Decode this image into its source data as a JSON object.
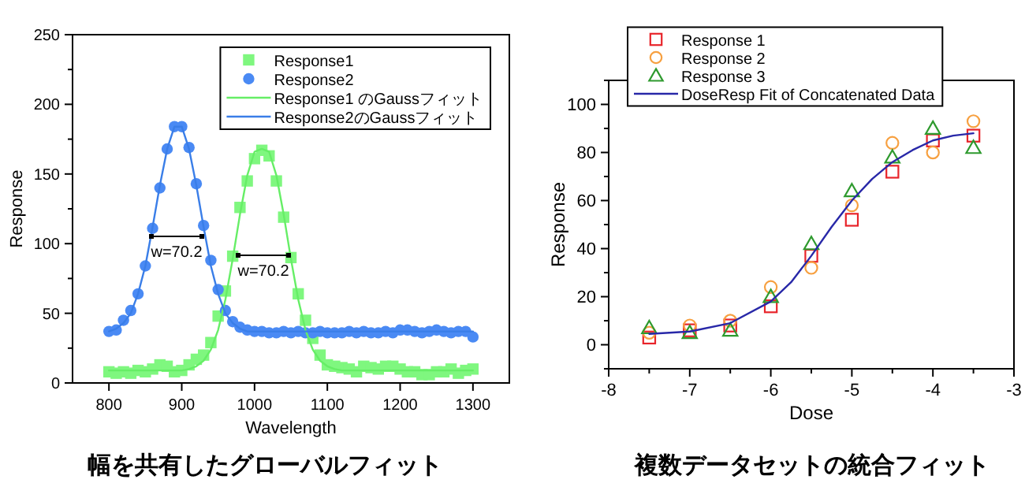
{
  "chart_data": [
    {
      "type": "scatter",
      "title": "幅を共有したグローバルフィット",
      "xlabel": "Wavelength",
      "ylabel": "Response",
      "xlim": [
        750,
        1350
      ],
      "ylim": [
        0,
        250
      ],
      "xticks": [
        800,
        900,
        1000,
        1100,
        1200,
        1300
      ],
      "yticks": [
        0,
        {
          "value": 25,
          "label": null
        },
        50,
        {
          "value": 75,
          "label": null
        },
        100,
        {
          "value": 125,
          "label": null
        },
        150,
        {
          "value": 175,
          "label": null
        },
        200,
        {
          "value": 225,
          "label": null
        },
        250
      ],
      "legend": "top right",
      "annotations": [
        "w=70.2",
        "w=70.2"
      ],
      "x": [
        800,
        810,
        820,
        830,
        840,
        850,
        860,
        870,
        880,
        890,
        900,
        910,
        920,
        930,
        940,
        950,
        960,
        970,
        980,
        990,
        1000,
        1010,
        1020,
        1030,
        1040,
        1050,
        1060,
        1070,
        1080,
        1090,
        1100,
        1110,
        1120,
        1130,
        1140,
        1150,
        1160,
        1170,
        1180,
        1190,
        1200,
        1210,
        1220,
        1230,
        1240,
        1250,
        1260,
        1270,
        1280,
        1290,
        1300
      ],
      "series": [
        {
          "name": "Response1",
          "marker": "square",
          "color": "#7ff77f",
          "values": [
            8,
            7,
            8,
            7,
            9,
            8,
            10,
            13,
            12,
            8,
            9,
            13,
            17,
            20,
            29,
            48,
            66,
            91,
            126,
            145,
            161,
            167,
            163,
            145,
            119,
            90,
            64,
            45,
            32,
            20,
            13,
            12,
            11,
            10,
            8,
            12,
            11,
            10,
            12,
            12,
            10,
            8,
            8,
            6,
            6,
            8,
            8,
            10,
            7,
            9,
            10
          ]
        },
        {
          "name": "Response2",
          "marker": "circle",
          "color": "#4a8af4",
          "values": [
            37,
            38,
            45,
            52,
            64,
            84,
            111,
            140,
            168,
            184,
            184,
            169,
            143,
            113,
            88,
            67,
            52,
            44,
            40,
            38,
            37,
            37,
            36,
            36,
            37,
            36,
            37,
            36,
            36,
            37,
            36,
            36,
            36,
            37,
            36,
            37,
            36,
            36,
            37,
            36,
            38,
            38,
            37,
            36,
            37,
            38,
            37,
            36,
            37,
            37,
            33
          ]
        },
        {
          "name": "Response1 のGaussフィット",
          "type": "line",
          "marker": "none",
          "color": "#66ee66",
          "values": [
            9,
            9,
            9,
            9,
            9,
            9,
            9,
            9,
            9,
            9,
            9,
            10,
            12,
            16,
            24,
            38,
            60,
            89,
            121,
            149,
            166,
            168,
            166,
            149,
            121,
            89,
            60,
            38,
            24,
            16,
            12,
            10,
            9,
            9,
            9,
            9,
            9,
            9,
            9,
            9,
            9,
            9,
            9,
            9,
            9,
            9,
            9,
            9,
            9,
            9,
            9
          ]
        },
        {
          "name": "Response2のGaussフィット",
          "type": "line",
          "marker": "none",
          "color": "#3a7ee8",
          "values": [
            37,
            39,
            43,
            50,
            64,
            84,
            112,
            142,
            168,
            184,
            184,
            168,
            142,
            112,
            84,
            64,
            50,
            43,
            39,
            37,
            37,
            37,
            37,
            37,
            37,
            37,
            37,
            37,
            37,
            37,
            37,
            37,
            37,
            37,
            37,
            37,
            37,
            37,
            37,
            37,
            37,
            37,
            37,
            37,
            37,
            37,
            37,
            37,
            37,
            37,
            37
          ]
        }
      ]
    },
    {
      "type": "scatter",
      "title": "複数データセットの統合フィット",
      "xlabel": "Dose",
      "ylabel": "Response",
      "xlim": [
        -8,
        -3
      ],
      "ylim": [
        -10,
        110
      ],
      "xticks": [
        -8,
        {
          "value": -7.5,
          "label": null
        },
        -7,
        {
          "value": -6.5,
          "label": null
        },
        -6,
        {
          "value": -5.5,
          "label": null
        },
        -5,
        {
          "value": -4.5,
          "label": null
        },
        -4,
        {
          "value": -3.5,
          "label": null
        },
        -3
      ],
      "yticks": [
        {
          "value": -10,
          "label": null
        },
        0,
        {
          "value": 10,
          "label": null
        },
        20,
        {
          "value": 30,
          "label": null
        },
        40,
        {
          "value": 50,
          "label": null
        },
        60,
        {
          "value": 70,
          "label": null
        },
        80,
        {
          "value": 90,
          "label": null
        },
        100,
        {
          "value": 110,
          "label": null
        }
      ],
      "legend": "top left",
      "x": [
        -7.5,
        -7,
        -6.5,
        -6,
        -5.5,
        -5,
        -4.5,
        -4,
        -3.5
      ],
      "series": [
        {
          "name": "Response 1",
          "marker": "square",
          "color": "#e8242a",
          "values": [
            3,
            6,
            8,
            16,
            37,
            52,
            72,
            85,
            87
          ]
        },
        {
          "name": "Response 2",
          "marker": "circle",
          "color": "#f7a040",
          "values": [
            5,
            8,
            10,
            24,
            32,
            58,
            84,
            80,
            93
          ]
        },
        {
          "name": "Response 3",
          "marker": "triangle",
          "color": "#2e9a2e",
          "values": [
            7,
            5,
            6,
            20,
            42,
            64,
            78,
            90,
            82
          ]
        },
        {
          "name": "DoseResp Fit of Concatenated Data",
          "type": "line",
          "marker": "none",
          "color": "#2828a8",
          "x": [
            -7.5,
            -7,
            -6.5,
            -6,
            -5.75,
            -5.5,
            -5.25,
            -5,
            -4.75,
            -4.5,
            -4.25,
            -4,
            -3.75,
            -3.5
          ],
          "values": [
            4.5,
            5.5,
            9,
            18,
            26,
            37,
            49,
            60,
            69,
            76,
            81,
            85,
            87,
            88
          ]
        }
      ]
    }
  ]
}
